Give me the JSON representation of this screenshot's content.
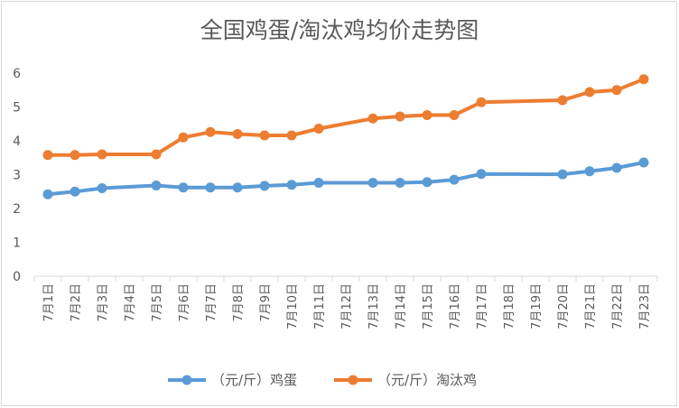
{
  "chart_data": {
    "type": "line",
    "title": "全国鸡蛋/淘汰鸡均价走势图",
    "xlabel": "",
    "ylabel": "",
    "ylim": [
      0,
      6
    ],
    "yticks": [
      "0",
      "1",
      "2",
      "3",
      "4",
      "5",
      "6"
    ],
    "grid": false,
    "legend_position": "bottom",
    "categories": [
      "7月1日",
      "7月2日",
      "7月3日",
      "7月4日",
      "7月5日",
      "7月6日",
      "7月7日",
      "7月8日",
      "7月9日",
      "7月10日",
      "7月11日",
      "7月12日",
      "7月13日",
      "7月14日",
      "7月15日",
      "7月16日",
      "7月17日",
      "7月18日",
      "7月19日",
      "7月20日",
      "7月21日",
      "7月22日",
      "7月23日"
    ],
    "series": [
      {
        "name": "（元/斤）鸡蛋",
        "color": "#5b9bd5",
        "values": [
          2.42,
          2.5,
          2.6,
          null,
          2.68,
          2.62,
          2.62,
          2.62,
          2.67,
          2.7,
          2.76,
          null,
          2.76,
          2.76,
          2.78,
          2.85,
          3.02,
          null,
          null,
          3.01,
          3.1,
          3.2,
          3.36
        ]
      },
      {
        "name": "（元/斤）淘汰鸡",
        "color": "#ed7d31",
        "values": [
          3.58,
          3.58,
          3.6,
          null,
          3.6,
          4.1,
          4.26,
          4.2,
          4.16,
          4.16,
          4.36,
          null,
          4.66,
          4.72,
          4.76,
          4.76,
          5.14,
          null,
          null,
          5.2,
          5.44,
          5.5,
          5.82
        ]
      }
    ]
  }
}
